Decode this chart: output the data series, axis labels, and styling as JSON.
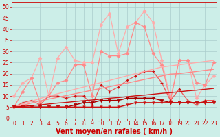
{
  "bg_color": "#cceee8",
  "grid_color": "#aacccc",
  "xlabel": "Vent moyen/en rafales ( km/h )",
  "xlabel_color": "#cc0000",
  "xlabel_fontsize": 7,
  "tick_color": "#cc0000",
  "yticks": [
    0,
    5,
    10,
    15,
    20,
    25,
    30,
    35,
    40,
    45,
    50
  ],
  "xticks": [
    0,
    1,
    2,
    3,
    4,
    5,
    6,
    7,
    8,
    9,
    10,
    11,
    12,
    13,
    14,
    15,
    16,
    17,
    18,
    19,
    20,
    21,
    22,
    23
  ],
  "ylim": [
    0,
    52
  ],
  "xlim": [
    -0.3,
    23.3
  ],
  "x": [
    0,
    1,
    2,
    3,
    4,
    5,
    6,
    7,
    8,
    9,
    10,
    11,
    12,
    13,
    14,
    15,
    16,
    17,
    18,
    19,
    20,
    21,
    22,
    23
  ],
  "line_rafale_max": [
    10,
    16,
    18,
    27,
    10,
    27,
    32,
    26,
    25,
    25,
    42,
    47,
    29,
    41,
    43,
    48,
    43,
    26,
    9,
    26,
    26,
    9,
    15,
    19
  ],
  "line_rafale_mean": [
    5,
    12,
    18,
    7,
    10,
    16,
    17,
    24,
    24,
    10,
    30,
    28,
    28,
    29,
    43,
    41,
    29,
    24,
    8,
    26,
    26,
    16,
    15,
    25
  ],
  "line_vent_mean": [
    5,
    7,
    8,
    6,
    10,
    10,
    9,
    10,
    10,
    6,
    15,
    12,
    14,
    17,
    19,
    21,
    21,
    16,
    8,
    13,
    8,
    6,
    8,
    8
  ],
  "line_reg1": [
    5,
    6.3,
    7.6,
    8.9,
    10.0,
    11.0,
    12.0,
    13.0,
    14.0,
    15.0,
    16.0,
    17.0,
    18.0,
    19.0,
    20.0,
    21.0,
    22.0,
    23.0,
    23.5,
    24.0,
    24.5,
    25.0,
    25.5,
    26.0
  ],
  "line_reg2": [
    5,
    5.8,
    6.8,
    7.8,
    8.6,
    9.4,
    10.2,
    11.0,
    11.8,
    12.6,
    13.4,
    14.2,
    15.0,
    15.8,
    16.6,
    17.4,
    18.2,
    19.0,
    19.8,
    20.0,
    20.5,
    21.0,
    21.5,
    22.0
  ],
  "line_reg3": [
    5,
    5.3,
    5.7,
    6.0,
    6.4,
    6.8,
    7.1,
    7.5,
    7.9,
    8.2,
    8.6,
    9.0,
    9.3,
    9.7,
    10.1,
    10.4,
    10.8,
    11.2,
    11.5,
    11.9,
    12.3,
    12.6,
    13.0,
    13.4
  ],
  "line_flat1": [
    5,
    5,
    5,
    5,
    5,
    5,
    5,
    6,
    7,
    7,
    8,
    8,
    8,
    9,
    9,
    9,
    9,
    8,
    7,
    7,
    7,
    7,
    7,
    7
  ],
  "line_flat2": [
    5,
    5,
    5,
    5,
    5,
    5,
    5,
    5,
    5,
    5,
    5,
    5,
    5,
    6,
    7,
    7,
    7,
    7,
    7,
    7,
    7,
    7,
    7,
    7
  ],
  "color_light_pink": "#ffaaaa",
  "color_salmon": "#ff8888",
  "color_mid_red": "#ee5555",
  "color_dark_red": "#cc1111",
  "color_deep_red": "#aa0000"
}
